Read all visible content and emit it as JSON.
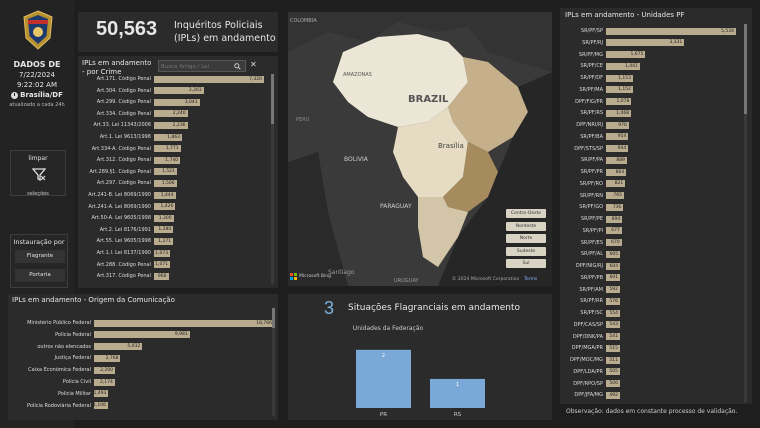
{
  "sidebar": {
    "dados_title": "DADOS DE",
    "date": "7/22/2024",
    "time": "9:22:02 AM",
    "location": "Brasília/DF",
    "update_note": "atualizado a cada 24h",
    "limpar_label": "limpar",
    "selecoes_label": "seleções",
    "instauracao_title": "Instauração por",
    "instauracao_options": [
      "Flagrante",
      "Portaria"
    ]
  },
  "header": {
    "count": "50,563",
    "line1": "Inquéritos Policiais",
    "line2": "(IPLs) em andamento"
  },
  "crime_panel": {
    "title_line1": "IPLs em andamento",
    "title_line2": "- por Crime",
    "search_placeholder": "Busca Artigo / Lei",
    "rows": [
      {
        "label": "Art.171. Código Penal",
        "value": "7,320",
        "frac": 1.0
      },
      {
        "label": "Art.304. Código Penal",
        "value": "3,303",
        "frac": 0.451
      },
      {
        "label": "Art.299. Código Penal",
        "value": "3,041",
        "frac": 0.415
      },
      {
        "label": "Art.334. Código Penal",
        "value": "2,240",
        "frac": 0.306
      },
      {
        "label": "Art.33. Lei 11343/2006",
        "value": "2,236",
        "frac": 0.305
      },
      {
        "label": "Art.1. Lei 9613/1998",
        "value": "1,863",
        "frac": 0.255
      },
      {
        "label": "Art.334-A. Código Penal",
        "value": "1,771",
        "frac": 0.242
      },
      {
        "label": "Art.312. Código Penal",
        "value": "1,740",
        "frac": 0.238
      },
      {
        "label": "Art.289.§1. Código Penal",
        "value": "1,521",
        "frac": 0.208
      },
      {
        "label": "Art.297. Código Penal",
        "value": "1,506",
        "frac": 0.206
      },
      {
        "label": "Art.241-B. Lei 8069/1990",
        "value": "1,444",
        "frac": 0.197
      },
      {
        "label": "Art.241-A. Lei 8069/1990",
        "value": "1,426",
        "frac": 0.195
      },
      {
        "label": "Art.50-A. Lei 9605/1998",
        "value": "1,300",
        "frac": 0.178
      },
      {
        "label": "Art.2. Lei 8176/1991",
        "value": "1,280",
        "frac": 0.175
      },
      {
        "label": "Art.55. Lei 9605/1998",
        "value": "1,271",
        "frac": 0.174
      },
      {
        "label": "Art.1.I. Lei 8137/1990",
        "value": "1,073",
        "frac": 0.147
      },
      {
        "label": "Art.288. Código Penal",
        "value": "1,071",
        "frac": 0.146
      },
      {
        "label": "Art.317. Código Penal",
        "value": "966",
        "frac": 0.132
      }
    ]
  },
  "map": {
    "labels": [
      "COLOMBIA",
      "AMAZONAS",
      "BRAZIL",
      "PERU",
      "BOLIVIA",
      "PARAGUAY",
      "Brasília",
      "Santiago",
      "URUGUAY"
    ],
    "legend": [
      "Centro-Oeste",
      "Nordeste",
      "Norte",
      "Sudeste",
      "Sul"
    ],
    "copyright": "© 2024 Microsoft Corporation",
    "terms": "Terms",
    "brand": "Microsoft Bing",
    "colors": {
      "nordeste": "#c6b08b",
      "sudeste": "#a68b5e",
      "sul": "#d3c6a8",
      "centro": "#e6dbc3",
      "norte": "#ece6d6",
      "ocean": "#262626"
    }
  },
  "origem_panel": {
    "title": "IPLs em andamento - Origem da Comunicação",
    "rows": [
      {
        "label": "Ministério Público Federal",
        "value": "18,766",
        "frac": 1.0
      },
      {
        "label": "Polícia Federal",
        "value": "9,981",
        "frac": 0.532
      },
      {
        "label": "outros não elencados",
        "value": "5,032",
        "frac": 0.268
      },
      {
        "label": "Justiça Federal",
        "value": "2,768",
        "frac": 0.147
      },
      {
        "label": "Caixa Econômica Federal",
        "value": "2,200",
        "frac": 0.117
      },
      {
        "label": "Polícia Civil",
        "value": "2,174",
        "frac": 0.116
      },
      {
        "label": "Polícia Militar",
        "value": "1,493",
        "frac": 0.08
      },
      {
        "label": "Polícia Rodoviária Federal",
        "value": "1,106",
        "frac": 0.059
      }
    ]
  },
  "flagrantes": {
    "count": "3",
    "title": "Situações Flagranciais em andamento",
    "chart_data": {
      "type": "bar",
      "title": "Unidades da Federação",
      "categories": [
        "PR",
        "RS"
      ],
      "values": [
        2,
        1
      ],
      "ylim": [
        0,
        2.2
      ]
    }
  },
  "unidades_panel": {
    "title": "IPLs em andamento - Unidades PF",
    "rows": [
      {
        "label": "SR/PF/SP",
        "value": "5,534",
        "frac": 1.0
      },
      {
        "label": "SR/PF/RJ",
        "value": "3,331",
        "frac": 0.602
      },
      {
        "label": "SR/PF/MG",
        "value": "1,675",
        "frac": 0.303
      },
      {
        "label": "SR/PF/CE",
        "value": "1,441",
        "frac": 0.26
      },
      {
        "label": "SR/PF/DF",
        "value": "1,153",
        "frac": 0.208
      },
      {
        "label": "SR/PF/MA",
        "value": "1,152",
        "frac": 0.208
      },
      {
        "label": "DPF/FIG/PR",
        "value": "1,078",
        "frac": 0.195
      },
      {
        "label": "SR/PF/RS",
        "value": "1,068",
        "frac": 0.193
      },
      {
        "label": "DPF/NRI/RJ",
        "value": "976",
        "frac": 0.176
      },
      {
        "label": "SR/PF/BA",
        "value": "954",
        "frac": 0.172
      },
      {
        "label": "DPF/STS/SP",
        "value": "944",
        "frac": 0.171
      },
      {
        "label": "SR/PF/PA",
        "value": "889",
        "frac": 0.161
      },
      {
        "label": "SR/PF/PR",
        "value": "864",
        "frac": 0.156
      },
      {
        "label": "SR/PF/RO",
        "value": "821",
        "frac": 0.148
      },
      {
        "label": "SR/PF/RN",
        "value": "765",
        "frac": 0.138
      },
      {
        "label": "SR/PF/GO",
        "value": "736",
        "frac": 0.133
      },
      {
        "label": "SR/PF/PE",
        "value": "694",
        "frac": 0.125
      },
      {
        "label": "SR/PF/PI",
        "value": "677",
        "frac": 0.122
      },
      {
        "label": "SR/PF/ES",
        "value": "670",
        "frac": 0.121
      },
      {
        "label": "SR/PF/AL",
        "value": "605",
        "frac": 0.109
      },
      {
        "label": "DPF/NIG/RJ",
        "value": "604",
        "frac": 0.109
      },
      {
        "label": "SR/PF/PB",
        "value": "601",
        "frac": 0.109
      },
      {
        "label": "SR/PF/AM",
        "value": "592",
        "frac": 0.107
      },
      {
        "label": "SR/PF/RR",
        "value": "576",
        "frac": 0.104
      },
      {
        "label": "SR/PF/SC",
        "value": "554",
        "frac": 0.1
      },
      {
        "label": "DPF/CAS/SP",
        "value": "543",
        "frac": 0.098
      },
      {
        "label": "DPF/DNK/PA",
        "value": "541",
        "frac": 0.098
      },
      {
        "label": "DPF/MGA/PR",
        "value": "515",
        "frac": 0.093
      },
      {
        "label": "DPF/MOC/MG",
        "value": "511",
        "frac": 0.092
      },
      {
        "label": "DPF/LDA/PR",
        "value": "505",
        "frac": 0.091
      },
      {
        "label": "DPF/RPO/SP",
        "value": "500",
        "frac": 0.09
      },
      {
        "label": "DPF/JFA/MG",
        "value": "492",
        "frac": 0.089
      }
    ],
    "observacao": "Observação: dados em constante processo de validação."
  }
}
